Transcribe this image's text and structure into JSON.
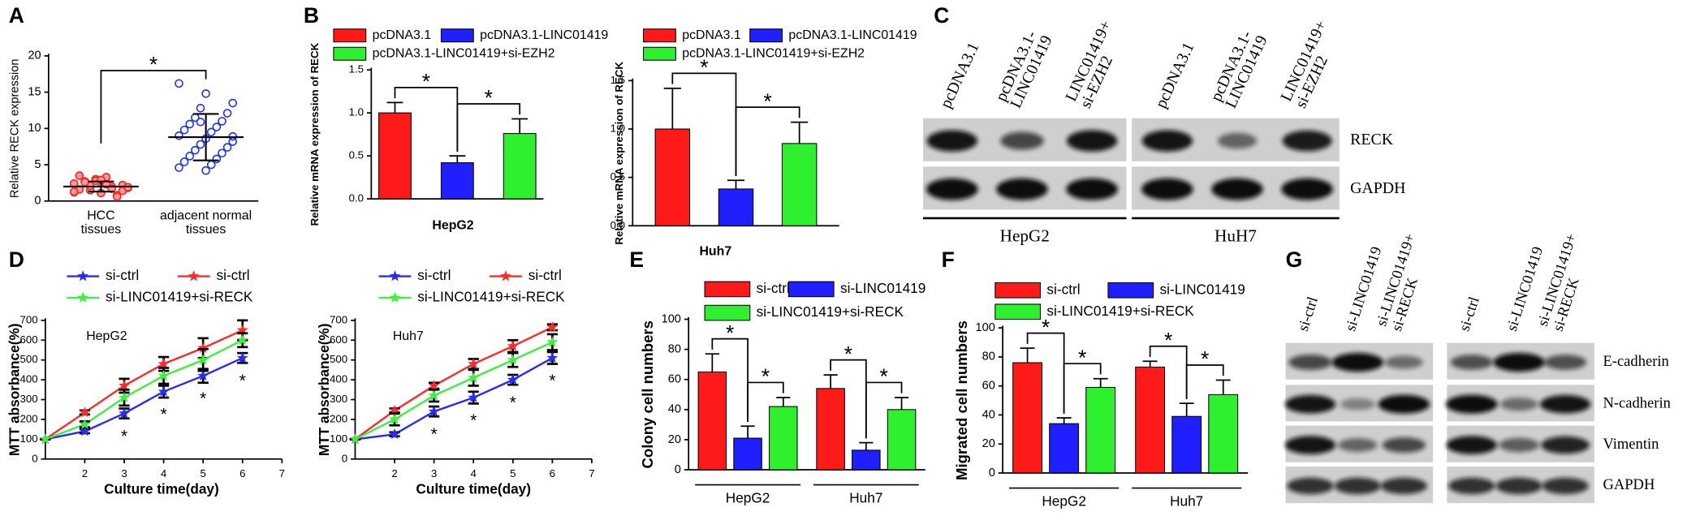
{
  "panel_labels": [
    "A",
    "B",
    "C",
    "D",
    "E",
    "F",
    "G"
  ],
  "chart_data": [
    {
      "type": "dot",
      "ylabel": "Relative RECK expression",
      "categories": [
        [
          "HCC",
          "tissues"
        ],
        [
          "adjacent normal",
          "tissues"
        ]
      ],
      "groups": [
        {
          "color": "#ff2020",
          "mean": 2.0,
          "sd": 0.7,
          "values": [
            1.2,
            2.5,
            1.8,
            3.0,
            2.2,
            1.5,
            0.8,
            2.7,
            2.0,
            1.6,
            3.3,
            2.4,
            1.1,
            1.9,
            2.8,
            1.4,
            2.1,
            0.6,
            2.6,
            1.7,
            3.5,
            2.3,
            1.3,
            2.9,
            1.9
          ]
        },
        {
          "color": "#2030ff",
          "mean": 8.8,
          "sd": 3.2,
          "values": [
            16.2,
            14.8,
            13.5,
            12.8,
            12.1,
            11.5,
            11.0,
            10.6,
            10.2,
            9.8,
            9.5,
            9.0,
            8.6,
            8.2,
            7.8,
            7.4,
            7.0,
            6.6,
            6.2,
            5.8,
            5.4,
            5.0,
            4.6,
            4.2,
            8.9,
            10.9
          ]
        }
      ],
      "ylim": [
        0,
        20
      ],
      "yticks": [
        0,
        5,
        10,
        15,
        20
      ],
      "annotations": [
        "*"
      ]
    },
    {
      "type": "bar",
      "ylabel": "Relative mRNA expression of RECK",
      "xlabel": "HepG2",
      "categories": [
        null
      ],
      "series": [
        {
          "name": "pcDNA3.1",
          "color": "#ff1a1a",
          "values": [
            1.0
          ],
          "errors": [
            0.12
          ]
        },
        {
          "name": "pcDNA3.1-LINC01419",
          "color": "#1f1fff",
          "values": [
            0.42
          ],
          "errors": [
            0.08
          ]
        },
        {
          "name": "pcDNA3.1-LINC01419+si-EZH2",
          "color": "#2ef02e",
          "values": [
            0.76
          ],
          "errors": [
            0.17
          ]
        }
      ],
      "ylim": [
        0,
        1.5
      ],
      "yticks": [
        {
          "value": 0,
          "label": "0.0"
        },
        {
          "value": 0.5,
          "label": "0.5"
        },
        {
          "value": 1,
          "label": "1.0"
        },
        {
          "value": 1.5,
          "label": "1.5"
        }
      ],
      "annotations": [
        "*",
        "*"
      ]
    },
    {
      "type": "bar",
      "ylabel": "Relative mRNA expression of RECK",
      "xlabel": "Huh7",
      "categories": [
        null
      ],
      "series": [
        {
          "name": "pcDNA3.1",
          "color": "#ff1a1a",
          "values": [
            1.0
          ],
          "errors": [
            0.42
          ]
        },
        {
          "name": "pcDNA3.1-LINC01419",
          "color": "#1f1fff",
          "values": [
            0.38
          ],
          "errors": [
            0.09
          ]
        },
        {
          "name": "pcDNA3.1-LINC01419+si-EZH2",
          "color": "#2ef02e",
          "values": [
            0.85
          ],
          "errors": [
            0.22
          ]
        }
      ],
      "ylim": [
        0,
        1.5
      ],
      "yticks": [
        {
          "value": 0,
          "label": "0.0"
        },
        {
          "value": 0.5,
          "label": "0.5"
        },
        {
          "value": 1,
          "label": "1.0"
        },
        {
          "value": 1.5,
          "label": "1.5"
        }
      ],
      "annotations": [
        "*",
        "*"
      ]
    },
    {
      "type": "line",
      "title": "HepG2",
      "ylabel": "MTT absorbance(%)",
      "xlabel": "Culture time(day)",
      "x": [
        1,
        2,
        3,
        4,
        5,
        6
      ],
      "series": [
        {
          "name": "si-ctrl",
          "color": "#2a2aff",
          "values": [
            100,
            140,
            230,
            340,
            420,
            510
          ],
          "errors": [
            0,
            10,
            25,
            30,
            35,
            25
          ]
        },
        {
          "name": "si-ctrl",
          "color": "#ff2a2a",
          "values": [
            100,
            235,
            370,
            480,
            560,
            650
          ],
          "errors": [
            0,
            10,
            35,
            35,
            50,
            50
          ]
        },
        {
          "name": "si-LINC01419+si-RECK",
          "color": "#3ef03e",
          "values": [
            100,
            175,
            310,
            420,
            500,
            600
          ],
          "errors": [
            0,
            15,
            40,
            40,
            55,
            35
          ]
        }
      ],
      "xlim": [
        1,
        7
      ],
      "xticks": [
        2,
        3,
        4,
        5,
        6,
        7
      ],
      "ylim": [
        0,
        700
      ],
      "yticks": [
        0,
        100,
        200,
        300,
        400,
        500,
        600,
        700
      ],
      "annotations": [
        "*",
        "*",
        "*",
        "*"
      ]
    },
    {
      "type": "line",
      "title": "Huh7",
      "ylabel": "MTT absorbance(%)",
      "xlabel": "Culture time(day)",
      "x": [
        1,
        2,
        3,
        4,
        5,
        6
      ],
      "series": [
        {
          "name": "si-ctrl",
          "color": "#2a2aff",
          "values": [
            100,
            125,
            240,
            310,
            400,
            510
          ],
          "errors": [
            0,
            10,
            25,
            30,
            25,
            30
          ]
        },
        {
          "name": "si-ctrl",
          "color": "#ff2a2a",
          "values": [
            100,
            245,
            370,
            480,
            570,
            665
          ],
          "errors": [
            0,
            10,
            15,
            25,
            30,
            15
          ]
        },
        {
          "name": "si-LINC01419+si-RECK",
          "color": "#3ef03e",
          "values": [
            100,
            200,
            320,
            410,
            500,
            590
          ],
          "errors": [
            0,
            30,
            30,
            40,
            35,
            40
          ]
        }
      ],
      "xlim": [
        1,
        7
      ],
      "xticks": [
        2,
        3,
        4,
        5,
        6,
        7
      ],
      "ylim": [
        0,
        700
      ],
      "yticks": [
        0,
        100,
        200,
        300,
        400,
        500,
        600,
        700
      ],
      "annotations": [
        "*",
        "*",
        "*",
        "*"
      ]
    },
    {
      "type": "bar",
      "ylabel": "Colony cell numbers",
      "categories": [
        "HepG2",
        "Huh7"
      ],
      "series": [
        {
          "name": "si-ctrl",
          "color": "#ff1a1a",
          "values": [
            65,
            54
          ],
          "errors": [
            12,
            9
          ]
        },
        {
          "name": "si-LINC01419",
          "color": "#1f1fff",
          "values": [
            21,
            13
          ],
          "errors": [
            8,
            5
          ]
        },
        {
          "name": "si-LINC01419+si-RECK",
          "color": "#2ef02e",
          "values": [
            42,
            40
          ],
          "errors": [
            6,
            8
          ]
        }
      ],
      "ylim": [
        0,
        100
      ],
      "yticks": [
        0,
        20,
        40,
        60,
        80,
        100
      ],
      "annotations": [
        "*",
        "*",
        "*",
        "*"
      ]
    },
    {
      "type": "bar",
      "ylabel": "Migrated cell numbers",
      "categories": [
        "HepG2",
        "Huh7"
      ],
      "series": [
        {
          "name": "si-ctrl",
          "color": "#ff1a1a",
          "values": [
            76,
            73
          ],
          "errors": [
            10,
            4
          ]
        },
        {
          "name": "si-LINC01419",
          "color": "#1f1fff",
          "values": [
            34,
            39
          ],
          "errors": [
            4,
            9
          ]
        },
        {
          "name": "si-LINC01419+si-RECK",
          "color": "#2ef02e",
          "values": [
            59,
            54
          ],
          "errors": [
            6,
            10
          ]
        }
      ],
      "ylim": [
        0,
        100
      ],
      "yticks": [
        0,
        20,
        40,
        60,
        80,
        100
      ],
      "annotations": [
        "*",
        "*",
        "*",
        "*"
      ]
    }
  ],
  "blots": [
    {
      "lanes": [
        [
          "pcDNA3.1"
        ],
        [
          "pcDNA3.1-",
          "LINC01419"
        ],
        [
          "LINC01419+",
          "si-EZH2"
        ]
      ],
      "rows": [
        "RECK",
        "GAPDH"
      ],
      "groups": [
        "HepG2",
        "HuH7"
      ]
    },
    {
      "lanes": [
        [
          "si-ctrl"
        ],
        [
          "si-LINC01419"
        ],
        [
          "si-LINC01419+",
          "si-RECK"
        ]
      ],
      "rows": [
        "E-cadherin",
        "N-cadherin",
        "Vimentin",
        "GAPDH"
      ]
    }
  ]
}
